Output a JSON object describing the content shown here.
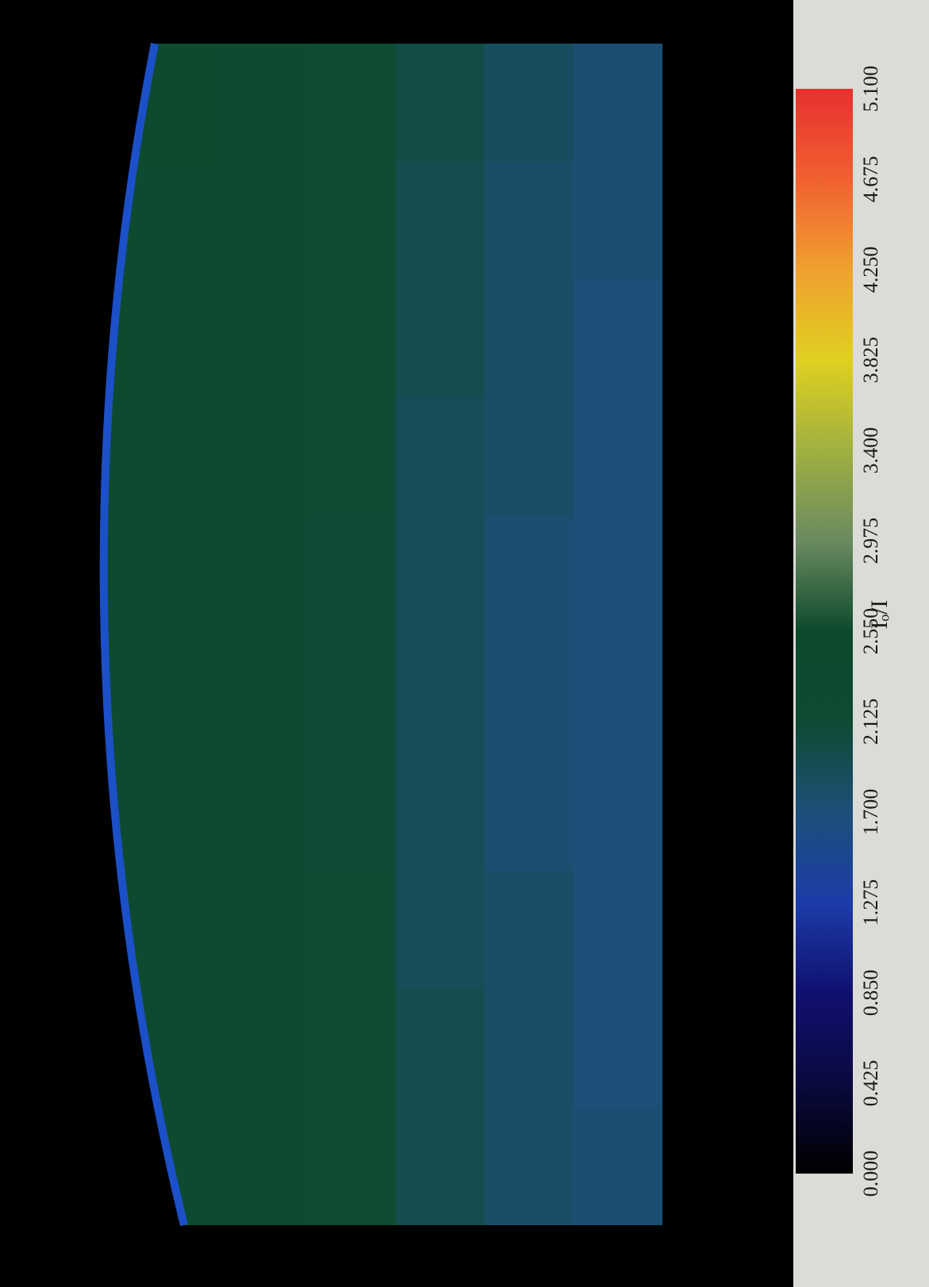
{
  "chart_data": {
    "type": "heatmap",
    "colorbar_label": "Iₒ/I",
    "clim": [
      0,
      5.1
    ],
    "colormap": [
      "#000000",
      "#0a0a40",
      "#101070",
      "#1c3ca8",
      "#1d4f78",
      "#0f4a33",
      "#0d4a2c",
      "#6a8a60",
      "#a0b040",
      "#e0d020",
      "#f0a030",
      "#f06030",
      "#e83030"
    ],
    "cticks": [
      {
        "value": 0,
        "label": "0.000"
      },
      {
        "value": 0.425,
        "label": "0.425"
      },
      {
        "value": 0.85,
        "label": "0.850"
      },
      {
        "value": 1.275,
        "label": "1.275"
      },
      {
        "value": 1.7,
        "label": "1.700"
      },
      {
        "value": 2.125,
        "label": "2.125"
      },
      {
        "value": 2.55,
        "label": "2.550"
      },
      {
        "value": 2.975,
        "label": "2.975"
      },
      {
        "value": 3.4,
        "label": "3.400"
      },
      {
        "value": 3.825,
        "label": "3.825"
      },
      {
        "value": 4.25,
        "label": "4.250"
      },
      {
        "value": 4.675,
        "label": "4.675"
      },
      {
        "value": 5.1,
        "label": "5.100"
      }
    ],
    "z": [
      [
        2.5,
        2.4,
        2.3,
        2.2,
        2.0,
        1.85,
        1.75
      ],
      [
        2.45,
        2.35,
        2.3,
        2.2,
        1.95,
        1.8,
        1.75
      ],
      [
        2.4,
        2.3,
        2.3,
        2.15,
        1.95,
        1.8,
        1.7
      ],
      [
        2.35,
        2.3,
        2.25,
        2.15,
        1.9,
        1.8,
        1.7
      ],
      [
        2.3,
        2.3,
        2.25,
        2.1,
        1.9,
        1.75,
        1.7
      ],
      [
        2.3,
        2.3,
        2.25,
        2.1,
        1.9,
        1.75,
        1.7
      ],
      [
        2.3,
        2.3,
        2.25,
        2.1,
        1.9,
        1.75,
        1.7
      ],
      [
        2.35,
        2.3,
        2.25,
        2.15,
        1.9,
        1.8,
        1.7
      ],
      [
        2.4,
        2.3,
        2.25,
        2.15,
        1.95,
        1.8,
        1.7
      ],
      [
        2.45,
        2.35,
        2.3,
        2.2,
        1.95,
        1.8,
        1.75
      ]
    ]
  }
}
